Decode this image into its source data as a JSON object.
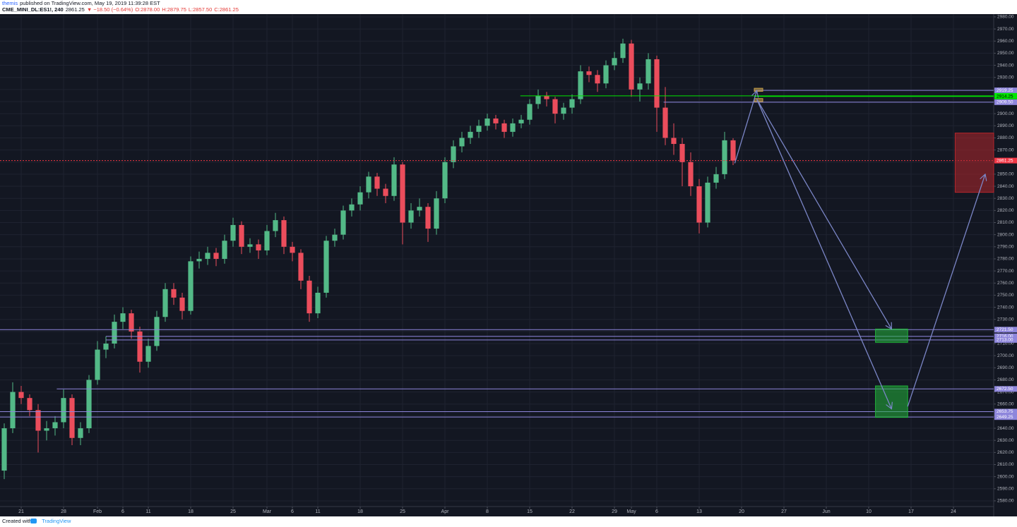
{
  "header": {
    "author": "themis",
    "published": "published on TradingView.com, May 19, 2019 11:39:28 EST",
    "symbol": "CME_MINI_DL:ES1!, 240",
    "price": "2861.25",
    "change": "▼ −18.50 (−0.64%)",
    "open": "O:2878.00",
    "high": "H:2879.75",
    "low": "L:2857.50",
    "close": "C:2861.25"
  },
  "footer": {
    "created": "Created with",
    "brand": "TradingView"
  },
  "chart_data": {
    "type": "candlestick",
    "up_color": "#53b987",
    "down_color": "#eb4d5c",
    "grid": true,
    "x": [
      -2,
      -1,
      0,
      1,
      2,
      3,
      4,
      5,
      6,
      7,
      8,
      9,
      10,
      11,
      12,
      13,
      14,
      15,
      16,
      17,
      18,
      19,
      20,
      21,
      22,
      23,
      24,
      25,
      26,
      27,
      28,
      29,
      30,
      31,
      32,
      33,
      34,
      35,
      36,
      37,
      38,
      39,
      40,
      41,
      42,
      43,
      44,
      45,
      46,
      47,
      48,
      49,
      50,
      51,
      52,
      53,
      54,
      55,
      56,
      57,
      58,
      59,
      60,
      61,
      62,
      63,
      64,
      65,
      66,
      67,
      68,
      69,
      70,
      71,
      72,
      73,
      74,
      75,
      76,
      77,
      78,
      79,
      80,
      81,
      82,
      83,
      84
    ],
    "open": [
      2605,
      2640,
      2670,
      2665,
      2655,
      2638,
      2640,
      2645,
      2665,
      2632,
      2640,
      2680,
      2705,
      2710,
      2728,
      2735,
      2720,
      2695,
      2708,
      2732,
      2755,
      2748,
      2737,
      2778,
      2780,
      2785,
      2780,
      2795,
      2808,
      2790,
      2792,
      2787,
      2803,
      2812,
      2790,
      2785,
      2762,
      2735,
      2752,
      2795,
      2800,
      2820,
      2825,
      2835,
      2848,
      2838,
      2832,
      2858,
      2810,
      2820,
      2823,
      2805,
      2830,
      2860,
      2873,
      2880,
      2885,
      2890,
      2896,
      2892,
      2885,
      2892,
      2895,
      2908,
      2915,
      2912,
      2900,
      2905,
      2912,
      2935,
      2932,
      2925,
      2940,
      2946,
      2958,
      2920,
      2925,
      2945,
      2905,
      2880,
      2875,
      2860,
      2840,
      2810,
      2843,
      2850,
      2878
    ],
    "high": [
      2644,
      2678,
      2675,
      2668,
      2660,
      2646,
      2650,
      2672,
      2668,
      2645,
      2684,
      2712,
      2716,
      2734,
      2740,
      2738,
      2724,
      2714,
      2737,
      2760,
      2760,
      2752,
      2782,
      2786,
      2790,
      2789,
      2800,
      2814,
      2811,
      2797,
      2796,
      2808,
      2818,
      2815,
      2794,
      2788,
      2766,
      2757,
      2799,
      2805,
      2824,
      2830,
      2840,
      2852,
      2851,
      2842,
      2864,
      2860,
      2826,
      2830,
      2826,
      2836,
      2864,
      2878,
      2885,
      2890,
      2895,
      2900,
      2899,
      2895,
      2896,
      2899,
      2912,
      2920,
      2918,
      2914,
      2909,
      2916,
      2940,
      2939,
      2936,
      2944,
      2951,
      2962,
      2961,
      2930,
      2950,
      2948,
      2922,
      2892,
      2880,
      2868,
      2846,
      2848,
      2856,
      2885,
      2879.75
    ],
    "low": [
      2598,
      2636,
      2660,
      2650,
      2620,
      2630,
      2634,
      2640,
      2626,
      2626,
      2636,
      2676,
      2698,
      2706,
      2722,
      2714,
      2686,
      2690,
      2704,
      2728,
      2742,
      2730,
      2734,
      2772,
      2775,
      2774,
      2776,
      2790,
      2784,
      2785,
      2780,
      2783,
      2798,
      2784,
      2778,
      2755,
      2728,
      2731,
      2748,
      2790,
      2796,
      2815,
      2820,
      2830,
      2832,
      2826,
      2828,
      2792,
      2805,
      2815,
      2794,
      2800,
      2826,
      2855,
      2868,
      2875,
      2880,
      2886,
      2887,
      2880,
      2881,
      2888,
      2891,
      2904,
      2906,
      2892,
      2895,
      2900,
      2908,
      2926,
      2918,
      2921,
      2936,
      2942,
      2914,
      2910,
      2920,
      2885,
      2874,
      2866,
      2840,
      2832,
      2801,
      2806,
      2838,
      2846,
      2857.5
    ],
    "close": [
      2640,
      2670,
      2665,
      2655,
      2638,
      2640,
      2645,
      2665,
      2632,
      2640,
      2680,
      2705,
      2710,
      2728,
      2735,
      2720,
      2695,
      2708,
      2732,
      2755,
      2748,
      2737,
      2778,
      2780,
      2785,
      2780,
      2795,
      2808,
      2790,
      2792,
      2787,
      2803,
      2812,
      2790,
      2785,
      2762,
      2735,
      2752,
      2795,
      2800,
      2820,
      2825,
      2835,
      2848,
      2838,
      2832,
      2858,
      2810,
      2820,
      2823,
      2805,
      2830,
      2860,
      2873,
      2880,
      2885,
      2890,
      2896,
      2892,
      2885,
      2892,
      2895,
      2908,
      2915,
      2912,
      2900,
      2905,
      2912,
      2935,
      2932,
      2925,
      2940,
      2946,
      2958,
      2920,
      2925,
      2945,
      2905,
      2880,
      2875,
      2860,
      2840,
      2810,
      2843,
      2850,
      2878,
      2861.25
    ],
    "xlim": [
      -2.5,
      114.75
    ],
    "xticks": [
      {
        "value": 0,
        "label": "21"
      },
      {
        "value": 5,
        "label": "28"
      },
      {
        "value": 9,
        "label": "Feb"
      },
      {
        "value": 12,
        "label": "6"
      },
      {
        "value": 15,
        "label": "11"
      },
      {
        "value": 20,
        "label": "18"
      },
      {
        "value": 25,
        "label": "25"
      },
      {
        "value": 29,
        "label": "Mar"
      },
      {
        "value": 32,
        "label": "6"
      },
      {
        "value": 35,
        "label": "11"
      },
      {
        "value": 40,
        "label": "18"
      },
      {
        "value": 45,
        "label": "25"
      },
      {
        "value": 50,
        "label": "Apr"
      },
      {
        "value": 55,
        "label": "8"
      },
      {
        "value": 60,
        "label": "15"
      },
      {
        "value": 65,
        "label": "22"
      },
      {
        "value": 70,
        "label": "29"
      },
      {
        "value": 72,
        "label": "May"
      },
      {
        "value": 75,
        "label": "6"
      },
      {
        "value": 80,
        "label": "13"
      },
      {
        "value": 85,
        "label": "20"
      },
      {
        "value": 90,
        "label": "27"
      },
      {
        "value": 95,
        "label": "Jun"
      },
      {
        "value": 100,
        "label": "10"
      },
      {
        "value": 105,
        "label": "17"
      },
      {
        "value": 110,
        "label": "24"
      }
    ],
    "ylim": [
      2575.3,
      2982.3
    ],
    "yticks": [
      {
        "value": 2580,
        "label": "2580.00"
      },
      {
        "value": 2590,
        "label": "2590.00"
      },
      {
        "value": 2600,
        "label": "2600.00"
      },
      {
        "value": 2610,
        "label": "2610.00"
      },
      {
        "value": 2620,
        "label": "2620.00"
      },
      {
        "value": 2630,
        "label": "2630.00"
      },
      {
        "value": 2640,
        "label": "2640.00"
      },
      {
        "value": 2650,
        "label": "2650.00"
      },
      {
        "value": 2660,
        "label": "2660.00"
      },
      {
        "value": 2670,
        "label": "2670.00"
      },
      {
        "value": 2680,
        "label": "2680.00"
      },
      {
        "value": 2690,
        "label": "2690.00"
      },
      {
        "value": 2700,
        "label": "2700.00"
      },
      {
        "value": 2710,
        "label": "2710.00"
      },
      {
        "value": 2720,
        "label": "2720.00"
      },
      {
        "value": 2730,
        "label": "2730.00"
      },
      {
        "value": 2740,
        "label": "2740.00"
      },
      {
        "value": 2750,
        "label": "2750.00"
      },
      {
        "value": 2760,
        "label": "2760.00"
      },
      {
        "value": 2770,
        "label": "2770.00"
      },
      {
        "value": 2780,
        "label": "2780.00"
      },
      {
        "value": 2790,
        "label": "2790.00"
      },
      {
        "value": 2800,
        "label": "2800.00"
      },
      {
        "value": 2810,
        "label": "2810.00"
      },
      {
        "value": 2820,
        "label": "2820.00"
      },
      {
        "value": 2830,
        "label": "2830.00"
      },
      {
        "value": 2840,
        "label": "2840.00"
      },
      {
        "value": 2850,
        "label": "2850.00"
      },
      {
        "value": 2860,
        "label": "2860.00"
      },
      {
        "value": 2870,
        "label": "2870.00"
      },
      {
        "value": 2880,
        "label": "2880.00"
      },
      {
        "value": 2890,
        "label": "2890.00"
      },
      {
        "value": 2900,
        "label": "2900.00"
      },
      {
        "value": 2910,
        "label": "2910.00"
      },
      {
        "value": 2920,
        "label": "2920.00"
      },
      {
        "value": 2930,
        "label": "2930.00"
      },
      {
        "value": 2940,
        "label": "2940.00"
      },
      {
        "value": 2950,
        "label": "2950.00"
      },
      {
        "value": 2960,
        "label": "2960.00"
      },
      {
        "value": 2970,
        "label": "2970.00"
      },
      {
        "value": 2980,
        "label": "2980.00"
      }
    ],
    "levels": [
      {
        "value": 2919.25,
        "label": "2919.25",
        "color": "#8e86dc",
        "from": 86.5,
        "dash": false
      },
      {
        "value": 2914.75,
        "label": "2914.75",
        "color": "#00e600",
        "from": 58.9,
        "dash": false
      },
      {
        "value": 2914.25,
        "label": "2914.25",
        "color": "#00e600",
        "from": 86.5,
        "dash": false
      },
      {
        "value": 2909.5,
        "label": "2909.50",
        "color": "#8e86dc",
        "from": 75.8,
        "dash": false
      },
      {
        "value": 2861.25,
        "label": "2861.25",
        "color": "#f23645",
        "from": -2.5,
        "dash": true
      },
      {
        "value": 2721.5,
        "label": "2721.50",
        "color": "#8e86dc",
        "from": -2.5,
        "dash": false
      },
      {
        "value": 2716,
        "label": "2716.00",
        "color": "#8e86dc",
        "from": 10,
        "dash": false
      },
      {
        "value": 2713,
        "label": "2713.00",
        "color": "#8e86dc",
        "from": 10,
        "dash": false
      },
      {
        "value": 2672.5,
        "label": "2672.50",
        "color": "#8e86dc",
        "from": 4.2,
        "dash": false
      },
      {
        "value": 2653.75,
        "label": "2653.75",
        "color": "#8e86dc",
        "from": -2.5,
        "dash": false
      },
      {
        "value": 2649.25,
        "label": "2649.25",
        "color": "#8e86dc",
        "from": -2.5,
        "dash": false
      }
    ],
    "boxes": [
      {
        "x": [
          100.8,
          104.6
        ],
        "y": [
          2711,
          2722
        ],
        "color": "#22b33a"
      },
      {
        "x": [
          100.8,
          104.6
        ],
        "y": [
          2649,
          2675
        ],
        "color": "#22b33a"
      },
      {
        "x": [
          110.2,
          114.75
        ],
        "y": [
          2835,
          2884
        ],
        "color": "#b3262c"
      },
      {
        "x": [
          86.5,
          87.5
        ],
        "y": [
          2918.5,
          2921
        ],
        "color": "#c8a24a"
      },
      {
        "x": [
          86.5,
          87.5
        ],
        "y": [
          2910,
          2912.5
        ],
        "color": "#c8a24a"
      }
    ],
    "arrows": [
      {
        "x": [
          84.2,
          86.8
        ],
        "y": [
          2859,
          2919
        ]
      },
      {
        "x": [
          86.8,
          102.7
        ],
        "y": [
          2912,
          2722
        ]
      },
      {
        "x": [
          86.8,
          102.7
        ],
        "y": [
          2912,
          2656
        ]
      },
      {
        "x": [
          104.6,
          113.75
        ],
        "y": [
          2658,
          2850
        ]
      }
    ],
    "arrow_color": "#7b86c7"
  }
}
